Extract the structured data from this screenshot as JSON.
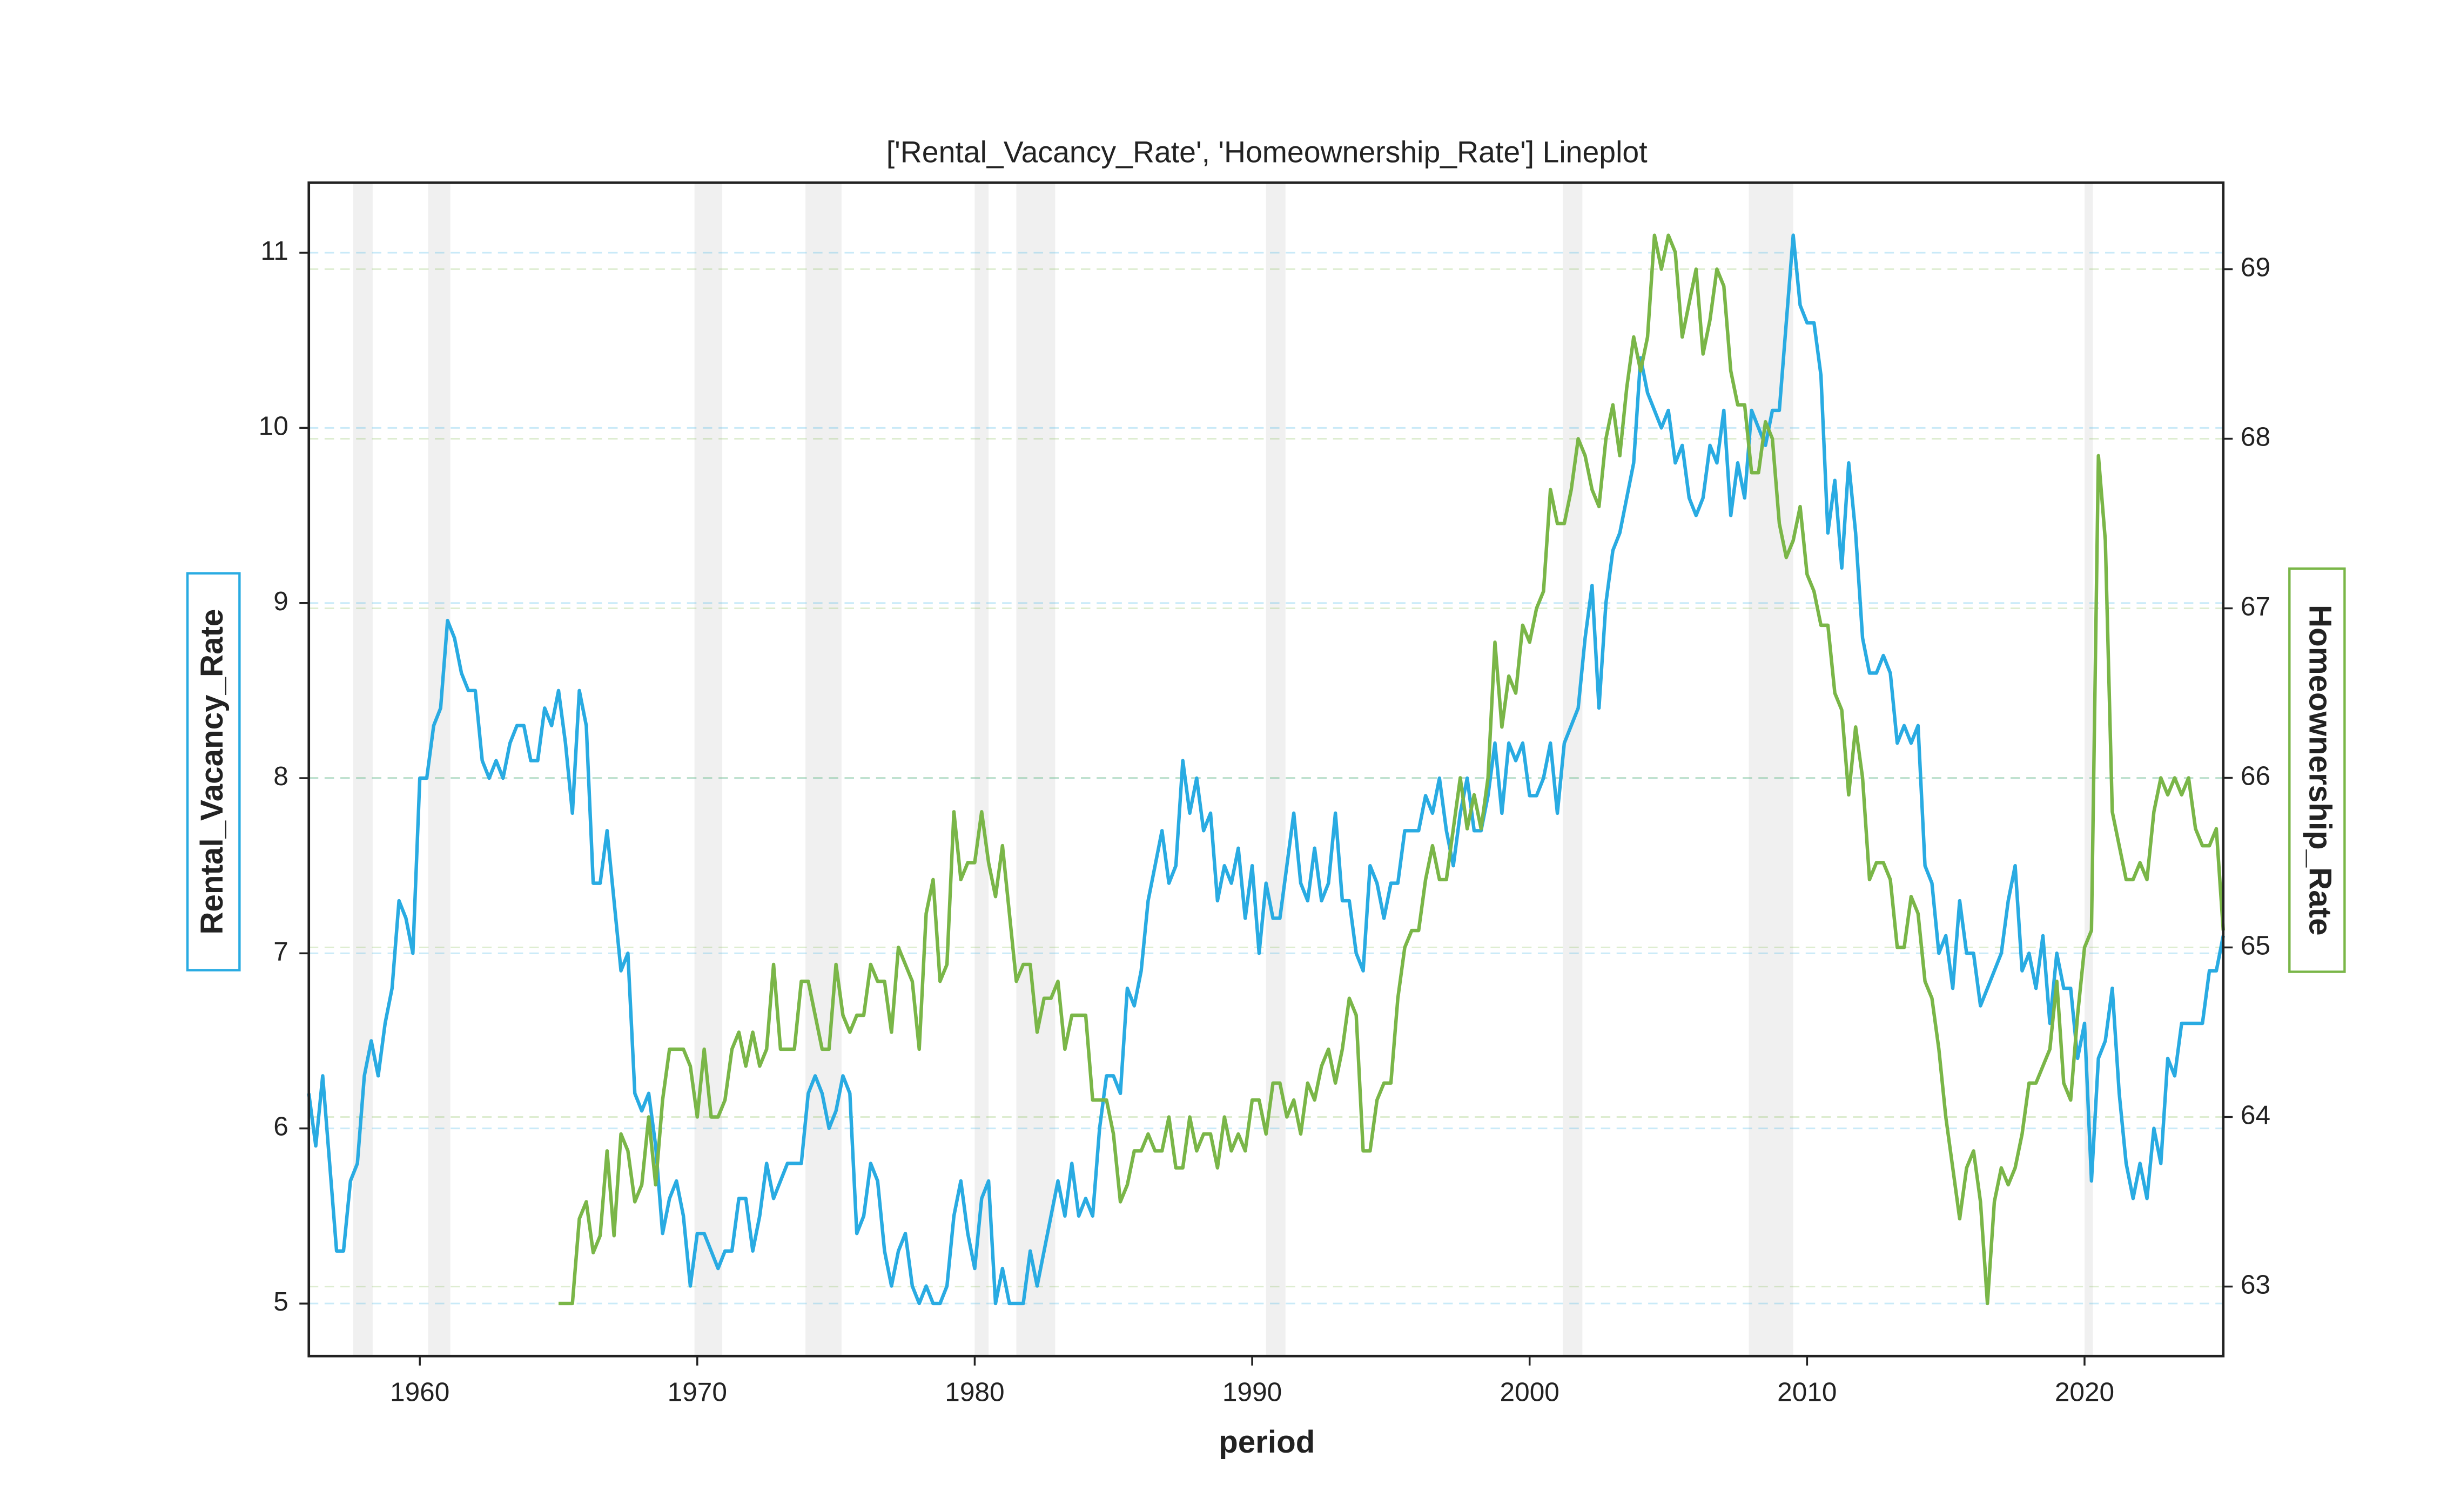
{
  "chart_data": {
    "type": "line",
    "title": "['Rental_Vacancy_Rate', 'Homeownership_Rate'] Lineplot",
    "xlabel": "period",
    "ylabel": "Rental_Vacancy_Rate",
    "y2label": "Homeownership_Rate",
    "xlim": [
      1956,
      2025
    ],
    "xticks": [
      1960,
      1970,
      1980,
      1990,
      2000,
      2010,
      2020
    ],
    "ylim": [
      4.7,
      11.4
    ],
    "yticks": [
      5,
      6,
      7,
      8,
      9,
      10,
      11
    ],
    "y2lim": [
      62.59,
      69.51
    ],
    "y2ticks": [
      63,
      64,
      65,
      66,
      67,
      68,
      69
    ],
    "grid": true,
    "shaded_periods": [
      [
        1957.6,
        1958.3
      ],
      [
        1960.3,
        1961.1
      ],
      [
        1969.9,
        1970.9
      ],
      [
        1973.9,
        1975.2
      ],
      [
        1980.0,
        1980.5
      ],
      [
        1981.5,
        1982.9
      ],
      [
        1990.5,
        1991.2
      ],
      [
        2001.2,
        2001.9
      ],
      [
        2007.9,
        2009.5
      ],
      [
        2020.0,
        2020.3
      ]
    ],
    "x": [
      1956,
      1956.25,
      1956.5,
      1956.75,
      1957,
      1957.25,
      1957.5,
      1957.75,
      1958,
      1958.25,
      1958.5,
      1958.75,
      1959,
      1959.25,
      1959.5,
      1959.75,
      1960,
      1960.25,
      1960.5,
      1960.75,
      1961,
      1961.25,
      1961.5,
      1961.75,
      1962,
      1962.25,
      1962.5,
      1962.75,
      1963,
      1963.25,
      1963.5,
      1963.75,
      1964,
      1964.25,
      1964.5,
      1964.75,
      1965,
      1965.25,
      1965.5,
      1965.75,
      1966,
      1966.25,
      1966.5,
      1966.75,
      1967,
      1967.25,
      1967.5,
      1967.75,
      1968,
      1968.25,
      1968.5,
      1968.75,
      1969,
      1969.25,
      1969.5,
      1969.75,
      1970,
      1970.25,
      1970.5,
      1970.75,
      1971,
      1971.25,
      1971.5,
      1971.75,
      1972,
      1972.25,
      1972.5,
      1972.75,
      1973,
      1973.25,
      1973.5,
      1973.75,
      1974,
      1974.25,
      1974.5,
      1974.75,
      1975,
      1975.25,
      1975.5,
      1975.75,
      1976,
      1976.25,
      1976.5,
      1976.75,
      1977,
      1977.25,
      1977.5,
      1977.75,
      1978,
      1978.25,
      1978.5,
      1978.75,
      1979,
      1979.25,
      1979.5,
      1979.75,
      1980,
      1980.25,
      1980.5,
      1980.75,
      1981,
      1981.25,
      1981.5,
      1981.75,
      1982,
      1982.25,
      1982.5,
      1982.75,
      1983,
      1983.25,
      1983.5,
      1983.75,
      1984,
      1984.25,
      1984.5,
      1984.75,
      1985,
      1985.25,
      1985.5,
      1985.75,
      1986,
      1986.25,
      1986.5,
      1986.75,
      1987,
      1987.25,
      1987.5,
      1987.75,
      1988,
      1988.25,
      1988.5,
      1988.75,
      1989,
      1989.25,
      1989.5,
      1989.75,
      1990,
      1990.25,
      1990.5,
      1990.75,
      1991,
      1991.25,
      1991.5,
      1991.75,
      1992,
      1992.25,
      1992.5,
      1992.75,
      1993,
      1993.25,
      1993.5,
      1993.75,
      1994,
      1994.25,
      1994.5,
      1994.75,
      1995,
      1995.25,
      1995.5,
      1995.75,
      1996,
      1996.25,
      1996.5,
      1996.75,
      1997,
      1997.25,
      1997.5,
      1997.75,
      1998,
      1998.25,
      1998.5,
      1998.75,
      1999,
      1999.25,
      1999.5,
      1999.75,
      2000,
      2000.25,
      2000.5,
      2000.75,
      2001,
      2001.25,
      2001.5,
      2001.75,
      2002,
      2002.25,
      2002.5,
      2002.75,
      2003,
      2003.25,
      2003.5,
      2003.75,
      2004,
      2004.25,
      2004.5,
      2004.75,
      2005,
      2005.25,
      2005.5,
      2005.75,
      2006,
      2006.25,
      2006.5,
      2006.75,
      2007,
      2007.25,
      2007.5,
      2007.75,
      2008,
      2008.25,
      2008.5,
      2008.75,
      2009,
      2009.25,
      2009.5,
      2009.75,
      2010,
      2010.25,
      2010.5,
      2010.75,
      2011,
      2011.25,
      2011.5,
      2011.75,
      2012,
      2012.25,
      2012.5,
      2012.75,
      2013,
      2013.25,
      2013.5,
      2013.75,
      2014,
      2014.25,
      2014.5,
      2014.75,
      2015,
      2015.25,
      2015.5,
      2015.75,
      2016,
      2016.25,
      2016.5,
      2016.75,
      2017,
      2017.25,
      2017.5,
      2017.75,
      2018,
      2018.25,
      2018.5,
      2018.75,
      2019,
      2019.25,
      2019.5,
      2019.75,
      2020,
      2020.25,
      2020.5,
      2020.75,
      2021,
      2021.25,
      2021.5,
      2021.75,
      2022,
      2022.25,
      2022.5,
      2022.75,
      2023,
      2023.25,
      2023.5,
      2023.75,
      2024,
      2024.25,
      2024.5,
      2024.75,
      2025
    ],
    "series": [
      {
        "name": "Rental_Vacancy_Rate",
        "color": "#29abe2",
        "axis": "y",
        "values": [
          6.2,
          5.9,
          6.3,
          5.8,
          5.3,
          5.3,
          5.7,
          5.8,
          6.3,
          6.5,
          6.3,
          6.6,
          6.8,
          7.3,
          7.2,
          7.0,
          8.0,
          8.0,
          8.3,
          8.4,
          8.9,
          8.8,
          8.6,
          8.5,
          8.5,
          8.1,
          8.0,
          8.1,
          8.0,
          8.2,
          8.3,
          8.3,
          8.1,
          8.1,
          8.4,
          8.3,
          8.5,
          8.2,
          7.8,
          8.5,
          8.3,
          7.4,
          7.4,
          7.7,
          7.3,
          6.9,
          7.0,
          6.2,
          6.1,
          6.2,
          5.9,
          5.4,
          5.6,
          5.7,
          5.5,
          5.1,
          5.4,
          5.4,
          5.3,
          5.2,
          5.3,
          5.3,
          5.6,
          5.6,
          5.3,
          5.5,
          5.8,
          5.6,
          5.7,
          5.8,
          5.8,
          5.8,
          6.2,
          6.3,
          6.2,
          6.0,
          6.1,
          6.3,
          6.2,
          5.4,
          5.5,
          5.8,
          5.7,
          5.3,
          5.1,
          5.3,
          5.4,
          5.1,
          5.0,
          5.1,
          5.0,
          5.0,
          5.1,
          5.5,
          5.7,
          5.4,
          5.2,
          5.6,
          5.7,
          5.0,
          5.2,
          5.0,
          5.0,
          5.0,
          5.3,
          5.1,
          5.3,
          5.5,
          5.7,
          5.5,
          5.8,
          5.5,
          5.6,
          5.5,
          6.0,
          6.3,
          6.3,
          6.2,
          6.8,
          6.7,
          6.9,
          7.3,
          7.5,
          7.7,
          7.4,
          7.5,
          8.1,
          7.8,
          8.0,
          7.7,
          7.8,
          7.3,
          7.5,
          7.4,
          7.6,
          7.2,
          7.5,
          7.0,
          7.4,
          7.2,
          7.2,
          7.5,
          7.8,
          7.4,
          7.3,
          7.6,
          7.3,
          7.4,
          7.8,
          7.3,
          7.3,
          7.0,
          6.9,
          7.5,
          7.4,
          7.2,
          7.4,
          7.4,
          7.7,
          7.7,
          7.7,
          7.9,
          7.8,
          8.0,
          7.7,
          7.5,
          7.8,
          8.0,
          7.7,
          7.7,
          7.9,
          8.2,
          7.8,
          8.2,
          8.1,
          8.2,
          7.9,
          7.9,
          8.0,
          8.2,
          7.8,
          8.2,
          8.3,
          8.4,
          8.8,
          9.1,
          8.4,
          9.0,
          9.3,
          9.4,
          9.6,
          9.8,
          10.4,
          10.2,
          10.1,
          10.0,
          10.1,
          9.8,
          9.9,
          9.6,
          9.5,
          9.6,
          9.9,
          9.8,
          10.1,
          9.5,
          9.8,
          9.6,
          10.1,
          10.0,
          9.9,
          10.1,
          10.1,
          10.6,
          11.1,
          10.7,
          10.6,
          10.6,
          10.3,
          9.4,
          9.7,
          9.2,
          9.8,
          9.4,
          8.8,
          8.6,
          8.6,
          8.7,
          8.6,
          8.2,
          8.3,
          8.2,
          8.3,
          7.5,
          7.4,
          7.0,
          7.1,
          6.8,
          7.3,
          7.0,
          7.0,
          6.7,
          6.8,
          6.9,
          7.0,
          7.3,
          7.5,
          6.9,
          7.0,
          6.8,
          7.1,
          6.6,
          7.0,
          6.8,
          6.8,
          6.4,
          6.6,
          5.7,
          6.4,
          6.5,
          6.8,
          6.2,
          5.8,
          5.6,
          5.8,
          5.6,
          6.0,
          5.8,
          6.4,
          6.3,
          6.6,
          6.6,
          6.6,
          6.6,
          6.9,
          6.9,
          7.1
        ]
      },
      {
        "name": "Homeownership_Rate",
        "color": "#7ab648",
        "axis": "y2",
        "values": [
          null,
          null,
          null,
          null,
          null,
          null,
          null,
          null,
          null,
          null,
          null,
          null,
          null,
          null,
          null,
          null,
          null,
          null,
          null,
          null,
          null,
          null,
          null,
          null,
          null,
          null,
          null,
          null,
          null,
          null,
          null,
          null,
          null,
          null,
          null,
          null,
          62.9,
          62.9,
          62.9,
          63.4,
          63.5,
          63.2,
          63.3,
          63.8,
          63.3,
          63.9,
          63.8,
          63.5,
          63.6,
          64.0,
          63.6,
          64.1,
          64.4,
          64.4,
          64.4,
          64.3,
          64.0,
          64.4,
          64.0,
          64.0,
          64.1,
          64.4,
          64.5,
          64.3,
          64.5,
          64.3,
          64.4,
          64.9,
          64.4,
          64.4,
          64.4,
          64.8,
          64.8,
          64.6,
          64.4,
          64.4,
          64.9,
          64.6,
          64.5,
          64.6,
          64.6,
          64.9,
          64.8,
          64.8,
          64.5,
          65.0,
          64.9,
          64.8,
          64.4,
          65.2,
          65.4,
          64.8,
          64.9,
          65.8,
          65.4,
          65.5,
          65.5,
          65.8,
          65.5,
          65.3,
          65.6,
          65.2,
          64.8,
          64.9,
          64.9,
          64.5,
          64.7,
          64.7,
          64.8,
          64.4,
          64.6,
          64.6,
          64.6,
          64.1,
          64.1,
          64.1,
          63.9,
          63.5,
          63.6,
          63.8,
          63.8,
          63.9,
          63.8,
          63.8,
          64.0,
          63.7,
          63.7,
          64.0,
          63.8,
          63.9,
          63.9,
          63.7,
          64.0,
          63.8,
          63.9,
          63.8,
          64.1,
          64.1,
          63.9,
          64.2,
          64.2,
          64.0,
          64.1,
          63.9,
          64.2,
          64.1,
          64.3,
          64.4,
          64.2,
          64.4,
          64.7,
          64.6,
          63.8,
          63.8,
          64.1,
          64.2,
          64.2,
          64.7,
          65.0,
          65.1,
          65.1,
          65.4,
          65.6,
          65.4,
          65.4,
          65.7,
          66.0,
          65.7,
          65.9,
          65.7,
          66.0,
          66.8,
          66.3,
          66.6,
          66.5,
          66.9,
          66.8,
          67.0,
          67.1,
          67.7,
          67.5,
          67.5,
          67.7,
          68.0,
          67.9,
          67.7,
          67.6,
          68.0,
          68.2,
          67.9,
          68.3,
          68.6,
          68.4,
          68.6,
          69.2,
          69.0,
          69.2,
          69.1,
          68.6,
          68.8,
          69.0,
          68.5,
          68.7,
          69.0,
          68.9,
          68.4,
          68.2,
          68.2,
          67.8,
          67.8,
          68.1,
          68.0,
          67.5,
          67.3,
          67.4,
          67.6,
          67.2,
          67.1,
          66.9,
          66.9,
          66.5,
          66.4,
          65.9,
          66.3,
          66.0,
          65.4,
          65.5,
          65.5,
          65.4,
          65.0,
          65.0,
          65.3,
          65.2,
          64.8,
          64.7,
          64.4,
          64.0,
          63.7,
          63.4,
          63.7,
          63.8,
          63.5,
          62.9,
          63.5,
          63.7,
          63.6,
          63.7,
          63.9,
          64.2,
          64.2,
          64.3,
          64.4,
          64.8,
          64.2,
          64.1,
          64.6,
          65.0,
          65.1,
          67.9,
          67.4,
          65.8,
          65.6,
          65.4,
          65.4,
          65.5,
          65.4,
          65.8,
          66.0,
          65.9,
          66.0,
          65.9,
          66.0,
          65.7,
          65.6,
          65.6,
          65.7,
          65.1
        ]
      }
    ]
  }
}
